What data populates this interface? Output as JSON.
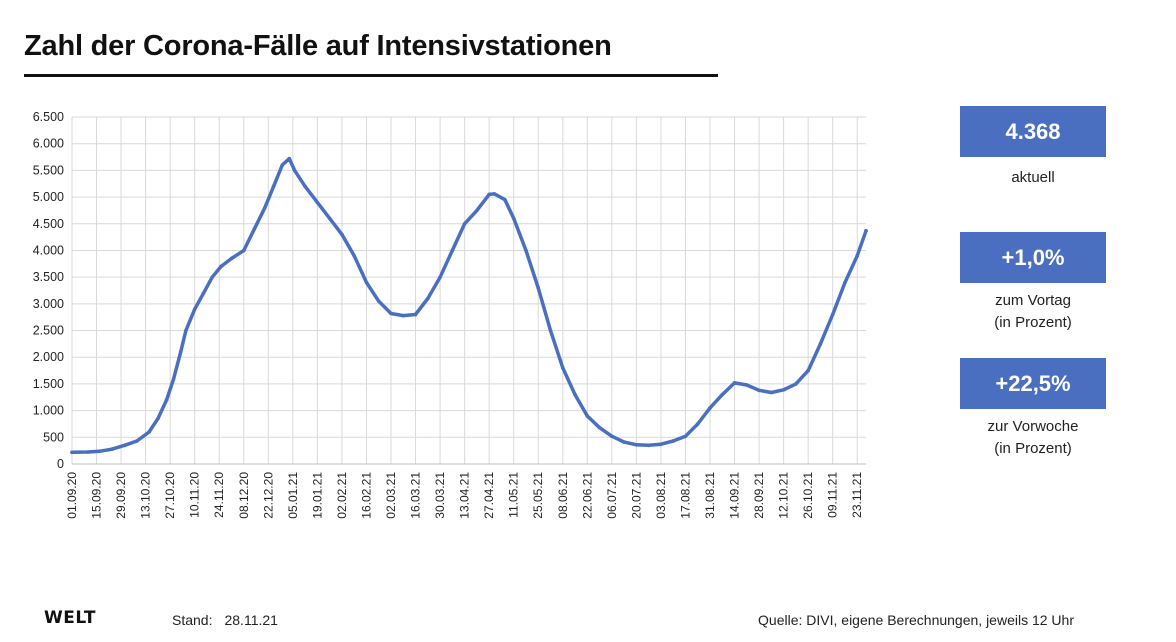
{
  "title": "Zahl der Corona-Fälle auf Intensivstationen",
  "kpis": [
    {
      "value": "4.368",
      "label_line1": "aktuell",
      "label_line2": ""
    },
    {
      "value": "+1,0%",
      "label_line1": "zum Vortag",
      "label_line2": "(in Prozent)"
    },
    {
      "value": "+22,5%",
      "label_line1": "zur Vorwoche",
      "label_line2": "(in Prozent)"
    }
  ],
  "footer": {
    "logo": "WELT",
    "stand_label": "Stand:",
    "stand_date": "28.11.21",
    "source": "Quelle: DIVI, eigene Berechnungen, jeweils 12 Uhr"
  },
  "colors": {
    "line": "#4a6fc0",
    "kpi_box": "#4a6fc0",
    "grid": "#d9d9d9"
  },
  "chart_data": {
    "type": "line",
    "title": "Zahl der Corona-Fälle auf Intensivstationen",
    "xlabel": "",
    "ylabel": "",
    "ylim": [
      0,
      6500
    ],
    "yticks": [
      0,
      500,
      1000,
      1500,
      2000,
      2500,
      3000,
      3500,
      4000,
      4500,
      5000,
      5500,
      6000,
      6500
    ],
    "ytick_labels": [
      "0",
      "500",
      "1.000",
      "1.500",
      "2.000",
      "2.500",
      "3.000",
      "3.500",
      "4.000",
      "4.500",
      "5.000",
      "5.500",
      "6.000",
      "6.500"
    ],
    "xrange": [
      "2020-09-01",
      "2021-11-28"
    ],
    "xticks": [
      "2020-09-01",
      "2020-09-15",
      "2020-09-29",
      "2020-10-13",
      "2020-10-27",
      "2020-11-10",
      "2020-11-24",
      "2020-12-08",
      "2020-12-22",
      "2021-01-05",
      "2021-01-19",
      "2021-02-02",
      "2021-02-16",
      "2021-03-02",
      "2021-03-16",
      "2021-03-30",
      "2021-04-13",
      "2021-04-27",
      "2021-05-11",
      "2021-05-25",
      "2021-06-08",
      "2021-06-22",
      "2021-07-06",
      "2021-07-20",
      "2021-08-03",
      "2021-08-17",
      "2021-08-31",
      "2021-09-14",
      "2021-09-28",
      "2021-10-12",
      "2021-10-26",
      "2021-11-09",
      "2021-11-23"
    ],
    "xtick_labels": [
      "01.09.20",
      "15.09.20",
      "29.09.20",
      "13.10.20",
      "27.10.20",
      "10.11.20",
      "24.11.20",
      "08.12.20",
      "22.12.20",
      "05.01.21",
      "19.01.21",
      "02.02.21",
      "16.02.21",
      "02.03.21",
      "16.03.21",
      "30.03.21",
      "13.04.21",
      "27.04.21",
      "11.05.21",
      "25.05.21",
      "08.06.21",
      "22.06.21",
      "06.07.21",
      "20.07.21",
      "03.08.21",
      "17.08.21",
      "31.08.21",
      "14.09.21",
      "28.09.21",
      "12.10.21",
      "26.10.21",
      "09.11.21",
      "23.11.21"
    ],
    "grid": true,
    "series": [
      {
        "values": [
          {
            "x": "2020-09-01",
            "y": 220
          },
          {
            "x": "2020-09-10",
            "y": 225
          },
          {
            "x": "2020-09-17",
            "y": 240
          },
          {
            "x": "2020-09-24",
            "y": 280
          },
          {
            "x": "2020-10-01",
            "y": 350
          },
          {
            "x": "2020-10-08",
            "y": 430
          },
          {
            "x": "2020-10-15",
            "y": 600
          },
          {
            "x": "2020-10-20",
            "y": 850
          },
          {
            "x": "2020-10-25",
            "y": 1200
          },
          {
            "x": "2020-10-29",
            "y": 1600
          },
          {
            "x": "2020-11-02",
            "y": 2100
          },
          {
            "x": "2020-11-05",
            "y": 2500
          },
          {
            "x": "2020-11-10",
            "y": 2900
          },
          {
            "x": "2020-11-15",
            "y": 3200
          },
          {
            "x": "2020-11-20",
            "y": 3500
          },
          {
            "x": "2020-11-25",
            "y": 3700
          },
          {
            "x": "2020-12-01",
            "y": 3850
          },
          {
            "x": "2020-12-08",
            "y": 4000
          },
          {
            "x": "2020-12-14",
            "y": 4400
          },
          {
            "x": "2020-12-20",
            "y": 4800
          },
          {
            "x": "2020-12-25",
            "y": 5200
          },
          {
            "x": "2020-12-30",
            "y": 5600
          },
          {
            "x": "2021-01-03",
            "y": 5720
          },
          {
            "x": "2021-01-06",
            "y": 5500
          },
          {
            "x": "2021-01-12",
            "y": 5200
          },
          {
            "x": "2021-01-19",
            "y": 4900
          },
          {
            "x": "2021-01-26",
            "y": 4600
          },
          {
            "x": "2021-02-02",
            "y": 4300
          },
          {
            "x": "2021-02-09",
            "y": 3900
          },
          {
            "x": "2021-02-16",
            "y": 3400
          },
          {
            "x": "2021-02-23",
            "y": 3050
          },
          {
            "x": "2021-03-02",
            "y": 2820
          },
          {
            "x": "2021-03-09",
            "y": 2780
          },
          {
            "x": "2021-03-16",
            "y": 2800
          },
          {
            "x": "2021-03-23",
            "y": 3100
          },
          {
            "x": "2021-03-30",
            "y": 3500
          },
          {
            "x": "2021-04-06",
            "y": 4000
          },
          {
            "x": "2021-04-13",
            "y": 4500
          },
          {
            "x": "2021-04-20",
            "y": 4750
          },
          {
            "x": "2021-04-27",
            "y": 5050
          },
          {
            "x": "2021-04-30",
            "y": 5060
          },
          {
            "x": "2021-05-06",
            "y": 4950
          },
          {
            "x": "2021-05-11",
            "y": 4600
          },
          {
            "x": "2021-05-18",
            "y": 4000
          },
          {
            "x": "2021-05-25",
            "y": 3300
          },
          {
            "x": "2021-06-01",
            "y": 2500
          },
          {
            "x": "2021-06-08",
            "y": 1800
          },
          {
            "x": "2021-06-15",
            "y": 1300
          },
          {
            "x": "2021-06-22",
            "y": 900
          },
          {
            "x": "2021-06-29",
            "y": 680
          },
          {
            "x": "2021-07-06",
            "y": 520
          },
          {
            "x": "2021-07-13",
            "y": 410
          },
          {
            "x": "2021-07-20",
            "y": 360
          },
          {
            "x": "2021-07-27",
            "y": 350
          },
          {
            "x": "2021-08-03",
            "y": 370
          },
          {
            "x": "2021-08-10",
            "y": 430
          },
          {
            "x": "2021-08-17",
            "y": 520
          },
          {
            "x": "2021-08-24",
            "y": 750
          },
          {
            "x": "2021-08-31",
            "y": 1050
          },
          {
            "x": "2021-09-07",
            "y": 1300
          },
          {
            "x": "2021-09-14",
            "y": 1520
          },
          {
            "x": "2021-09-21",
            "y": 1480
          },
          {
            "x": "2021-09-28",
            "y": 1380
          },
          {
            "x": "2021-10-05",
            "y": 1340
          },
          {
            "x": "2021-10-12",
            "y": 1390
          },
          {
            "x": "2021-10-19",
            "y": 1500
          },
          {
            "x": "2021-10-26",
            "y": 1750
          },
          {
            "x": "2021-11-02",
            "y": 2250
          },
          {
            "x": "2021-11-09",
            "y": 2800
          },
          {
            "x": "2021-11-16",
            "y": 3400
          },
          {
            "x": "2021-11-23",
            "y": 3900
          },
          {
            "x": "2021-11-28",
            "y": 4368
          }
        ]
      }
    ]
  }
}
